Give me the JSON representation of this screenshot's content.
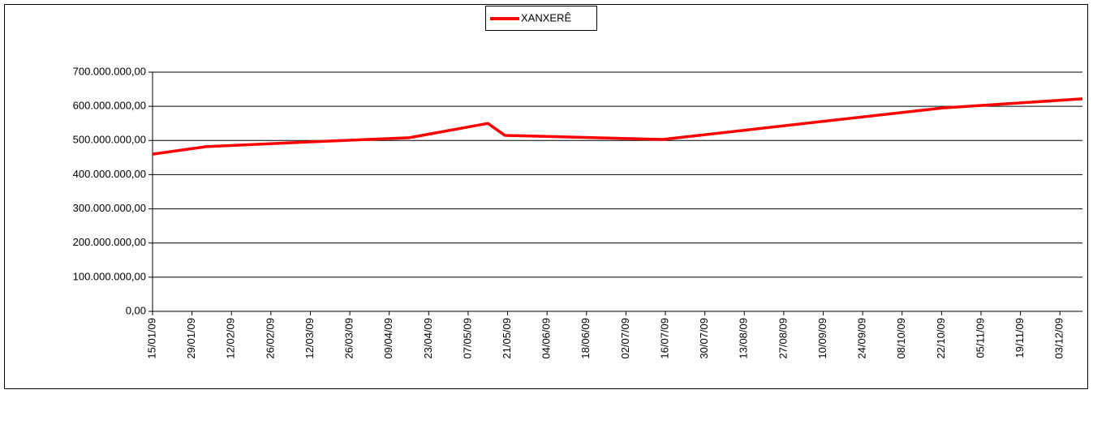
{
  "chart_data": {
    "type": "line",
    "x": [
      "2009-01-15",
      "2009-02-03",
      "2009-03-12",
      "2009-04-16",
      "2009-05-14",
      "2009-05-20",
      "2009-07-15",
      "2009-10-22",
      "2009-12-11"
    ],
    "series": [
      {
        "name": "XANXERÊ",
        "color": "#ff0000",
        "values": [
          460000000,
          482000000,
          496000000,
          508000000,
          550000000,
          515000000,
          503000000,
          595000000,
          622000000
        ]
      }
    ],
    "xlim": [
      "2009-01-15",
      "2009-12-11"
    ],
    "xticks": [
      {
        "value": "2009-01-15",
        "label": "15/01/09"
      },
      {
        "value": "2009-01-29",
        "label": "29/01/09"
      },
      {
        "value": "2009-02-12",
        "label": "12/02/09"
      },
      {
        "value": "2009-02-26",
        "label": "26/02/09"
      },
      {
        "value": "2009-03-12",
        "label": "12/03/09"
      },
      {
        "value": "2009-03-26",
        "label": "26/03/09"
      },
      {
        "value": "2009-04-09",
        "label": "09/04/09"
      },
      {
        "value": "2009-04-23",
        "label": "23/04/09"
      },
      {
        "value": "2009-05-07",
        "label": "07/05/09"
      },
      {
        "value": "2009-05-21",
        "label": "21/05/09"
      },
      {
        "value": "2009-06-04",
        "label": "04/06/09"
      },
      {
        "value": "2009-06-18",
        "label": "18/06/09"
      },
      {
        "value": "2009-07-02",
        "label": "02/07/09"
      },
      {
        "value": "2009-07-16",
        "label": "16/07/09"
      },
      {
        "value": "2009-07-30",
        "label": "30/07/09"
      },
      {
        "value": "2009-08-13",
        "label": "13/08/09"
      },
      {
        "value": "2009-08-27",
        "label": "27/08/09"
      },
      {
        "value": "2009-09-10",
        "label": "10/09/09"
      },
      {
        "value": "2009-09-24",
        "label": "24/09/09"
      },
      {
        "value": "2009-10-08",
        "label": "08/10/09"
      },
      {
        "value": "2009-10-22",
        "label": "22/10/09"
      },
      {
        "value": "2009-11-05",
        "label": "05/11/09"
      },
      {
        "value": "2009-11-19",
        "label": "19/11/09"
      },
      {
        "value": "2009-12-03",
        "label": "03/12/09"
      }
    ],
    "ylim": [
      0,
      700000000
    ],
    "yticks": [
      {
        "value": 0,
        "label": "0,00"
      },
      {
        "value": 100000000,
        "label": "100.000.000,00"
      },
      {
        "value": 200000000,
        "label": "200.000.000,00"
      },
      {
        "value": 300000000,
        "label": "300.000.000,00"
      },
      {
        "value": 400000000,
        "label": "400.000.000,00"
      },
      {
        "value": 500000000,
        "label": "500.000.000,00"
      },
      {
        "value": 600000000,
        "label": "600.000.000,00"
      },
      {
        "value": 700000000,
        "label": "700.000.000,00"
      }
    ],
    "grid": true,
    "legend": "top"
  }
}
